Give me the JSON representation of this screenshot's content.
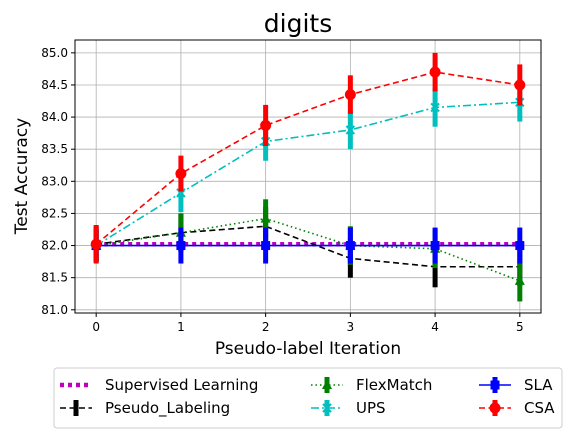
{
  "chart_data": {
    "type": "line",
    "title": "digits",
    "xlabel": "Pseudo-label Iteration",
    "ylabel": "Test Accuracy",
    "x": [
      0,
      1,
      2,
      3,
      4,
      5
    ],
    "xlim": [
      -0.25,
      5.25
    ],
    "ylim": [
      80.95,
      85.2
    ],
    "yticks": [
      "81.0",
      "81.5",
      "82.0",
      "82.5",
      "83.0",
      "83.5",
      "84.0",
      "84.5",
      "85.0"
    ],
    "xticks": [
      "0",
      "1",
      "2",
      "3",
      "4",
      "5"
    ],
    "grid": true,
    "legend_placement": "bottom, outside",
    "series": [
      {
        "name": "Supervised Learning",
        "color": "#bf00bf",
        "style": "dotted-thick",
        "marker": "none",
        "values": [
          82.02,
          82.02,
          82.02,
          82.02,
          82.02,
          82.02
        ],
        "errors": null
      },
      {
        "name": "Pseudo_Labeling",
        "color": "#000000",
        "style": "dashed",
        "marker": "point",
        "values": [
          82.02,
          82.2,
          82.3,
          81.8,
          81.67,
          81.67
        ],
        "errors": [
          0.28,
          0.3,
          0.3,
          0.3,
          0.32,
          0.3
        ]
      },
      {
        "name": "FlexMatch",
        "color": "#008000",
        "style": "dotted",
        "marker": "triangle",
        "values": [
          82.0,
          82.2,
          82.42,
          82.0,
          81.95,
          81.45
        ],
        "errors": [
          0.25,
          0.3,
          0.3,
          0.3,
          0.3,
          0.32
        ]
      },
      {
        "name": "UPS",
        "color": "#00bfbf",
        "style": "dashdot",
        "marker": "x",
        "values": [
          82.0,
          82.82,
          83.62,
          83.8,
          84.15,
          84.23
        ],
        "errors": [
          0.25,
          0.3,
          0.3,
          0.3,
          0.3,
          0.3
        ]
      },
      {
        "name": "SLA",
        "color": "#0000ff",
        "style": "solid",
        "marker": "square",
        "values": [
          82.0,
          82.0,
          82.0,
          82.0,
          82.0,
          82.0
        ],
        "errors": [
          0.25,
          0.28,
          0.28,
          0.28,
          0.28,
          0.28
        ]
      },
      {
        "name": "CSA",
        "color": "#ff0000",
        "style": "dashed",
        "marker": "circle",
        "values": [
          82.02,
          83.12,
          83.87,
          84.35,
          84.7,
          84.5
        ],
        "errors": [
          0.3,
          0.28,
          0.32,
          0.3,
          0.3,
          0.32
        ]
      }
    ]
  }
}
